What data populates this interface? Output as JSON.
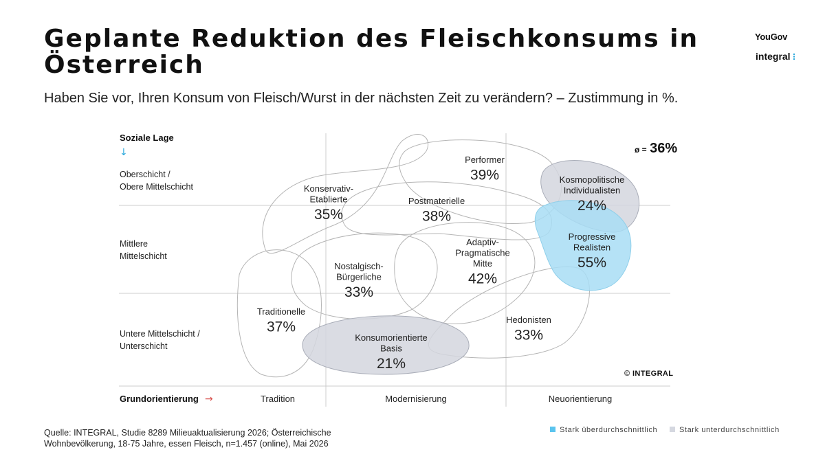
{
  "title": "Geplante Reduktion des Fleischkonsums in Österreich",
  "subtitle": "Haben Sie vor, Ihren Konsum von Fleisch/Wurst in der nächsten Zeit zu verändern? – Zustimmung in %.",
  "logos": {
    "yougov": "YouGov",
    "integral": "integral"
  },
  "average": {
    "symbol": "ø =",
    "value": "36%"
  },
  "copyright": "© INTEGRAL",
  "source": "Quelle: INTEGRAL, Studie 8289 Milieuaktualisierung 2026; Österreichische Wohnbevölkerung, 18-75 Jahre, essen Fleisch,  n=1.457 (online), Mai 2026",
  "legend": [
    {
      "label": "Stark überdurchschnittlich",
      "color": "#5BC4EE"
    },
    {
      "label": "Stark unterdurchschnittlich",
      "color": "#D5D8E0"
    }
  ],
  "colors": {
    "above": "#A8DDF5",
    "aboveStroke": "#8FCFEA",
    "below": "#D3D6DE",
    "belowStroke": "#A9ADB8",
    "outline": "#B5B5B5",
    "grid": "#CCCCCC",
    "arrowBlue": "#2AA8DC",
    "arrowRed": "#D9534F"
  },
  "chart_data": {
    "type": "milieu-map",
    "y_axis": {
      "title": "Soziale Lage",
      "levels": [
        "Oberschicht / Obere Mittelschicht",
        "Mittlere Mittelschicht",
        "Untere Mittelschicht / Unterschicht"
      ]
    },
    "x_axis": {
      "title": "Grundorientierung",
      "levels": [
        "Tradition",
        "Modernisierung",
        "Neuorientierung"
      ]
    },
    "milieus": [
      {
        "id": "performer",
        "lines": [
          "Performer"
        ],
        "value": 39,
        "label": "39%",
        "highlight": "none"
      },
      {
        "id": "kosmopolitische",
        "lines": [
          "Kosmopolitische",
          "Individualisten"
        ],
        "value": 24,
        "label": "24%",
        "highlight": "below"
      },
      {
        "id": "konservativ",
        "lines": [
          "Konservativ-",
          "Etablierte"
        ],
        "value": 35,
        "label": "35%",
        "highlight": "none"
      },
      {
        "id": "postmaterielle",
        "lines": [
          "Postmaterielle"
        ],
        "value": 38,
        "label": "38%",
        "highlight": "none"
      },
      {
        "id": "progressive",
        "lines": [
          "Progressive",
          "Realisten"
        ],
        "value": 55,
        "label": "55%",
        "highlight": "above"
      },
      {
        "id": "adaptiv",
        "lines": [
          "Adaptiv-",
          "Pragmatische",
          "Mitte"
        ],
        "value": 42,
        "label": "42%",
        "highlight": "none"
      },
      {
        "id": "nostalgisch",
        "lines": [
          "Nostalgisch-",
          "Bürgerliche"
        ],
        "value": 33,
        "label": "33%",
        "highlight": "none"
      },
      {
        "id": "traditionelle",
        "lines": [
          "Traditionelle"
        ],
        "value": 37,
        "label": "37%",
        "highlight": "none"
      },
      {
        "id": "hedonisten",
        "lines": [
          "Hedonisten"
        ],
        "value": 33,
        "label": "33%",
        "highlight": "none"
      },
      {
        "id": "konsumorientierte",
        "lines": [
          "Konsumorientierte",
          "Basis"
        ],
        "value": 21,
        "label": "21%",
        "highlight": "below"
      }
    ],
    "average": 36
  }
}
